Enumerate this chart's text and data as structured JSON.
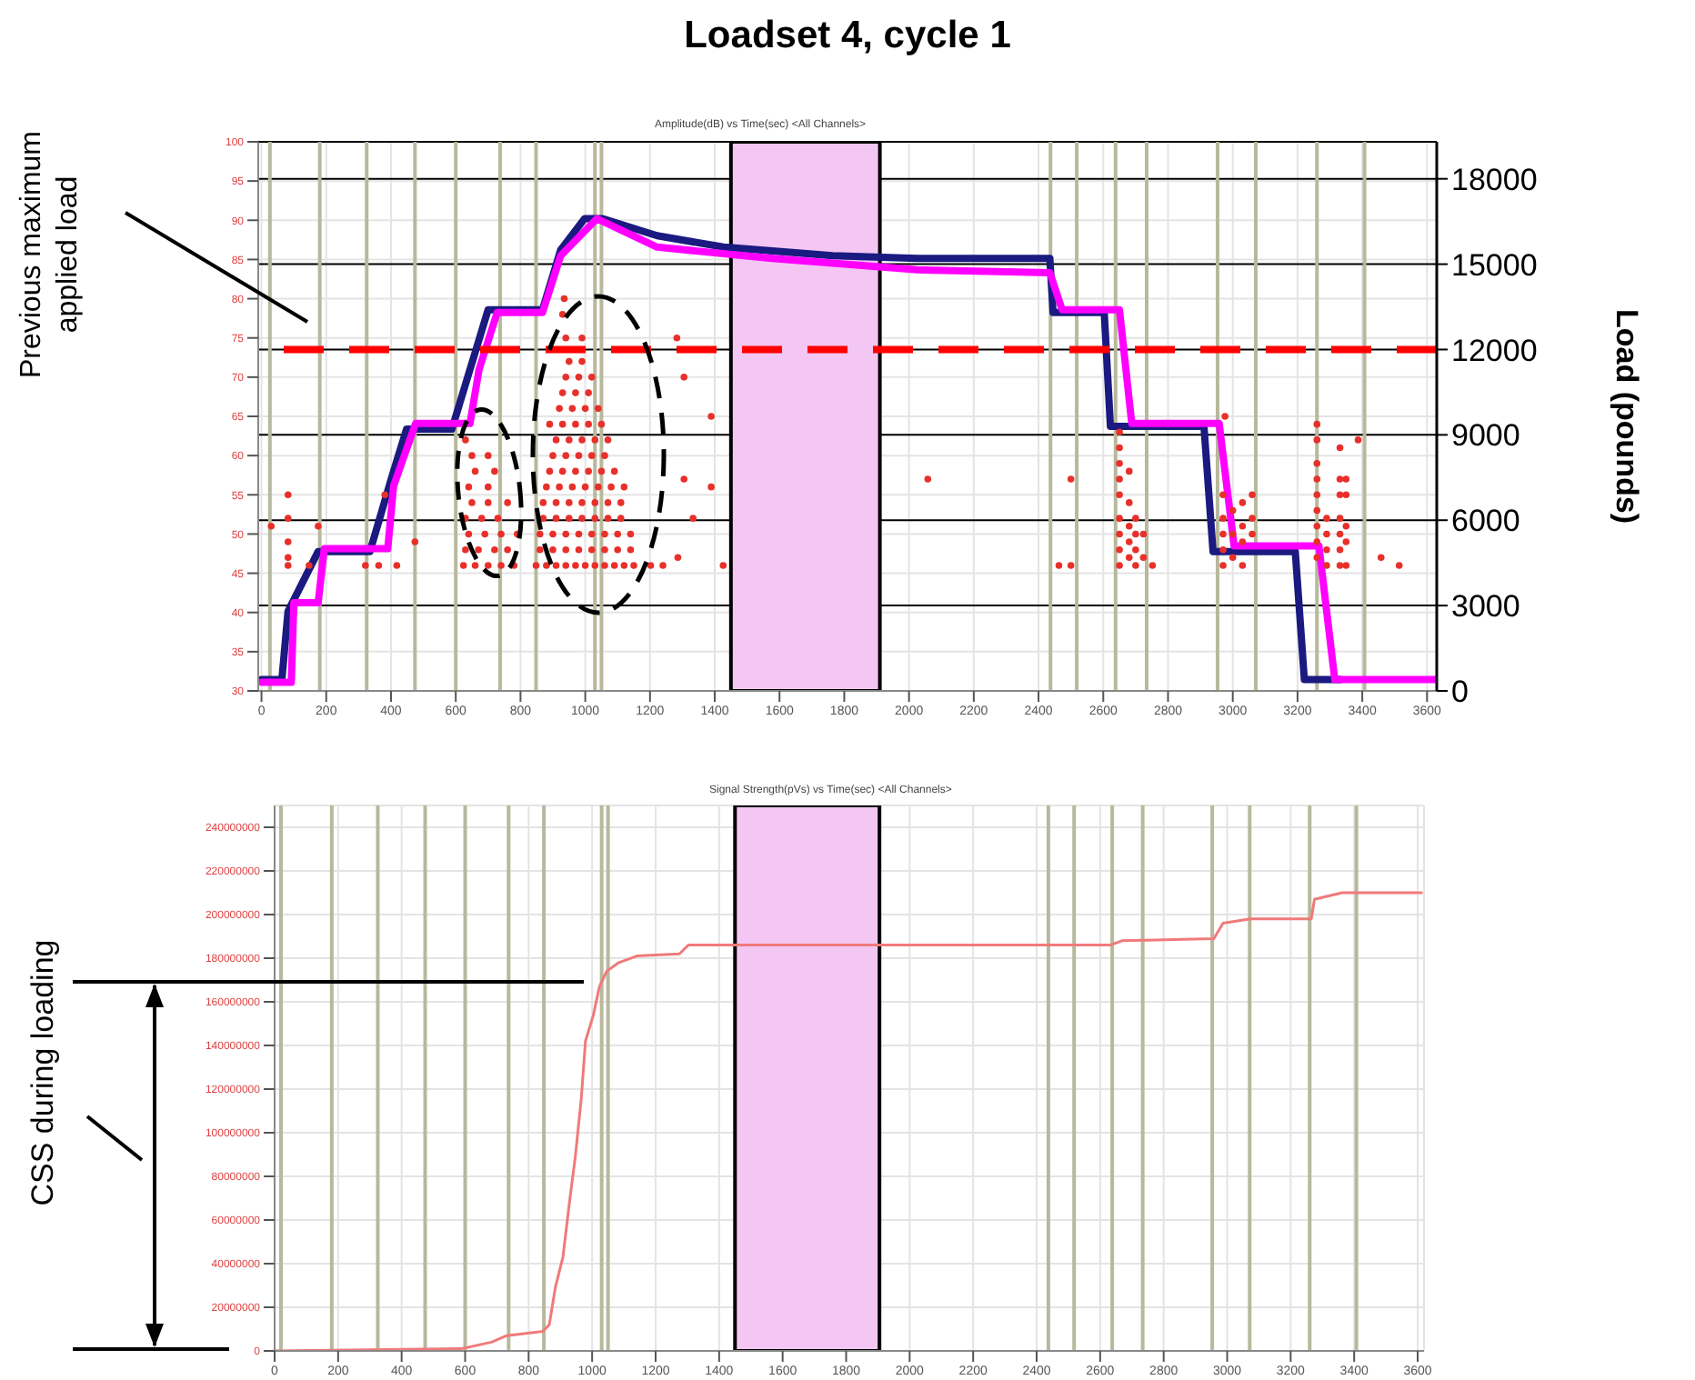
{
  "chart_data": [
    {
      "type": "scatter",
      "title": "Loadset 4, cycle 1",
      "subtitle": "Amplitude(dB) vs Time(sec) <All Channels>",
      "y2label": "Load (pounds)",
      "annotations": [
        "Previous maximum applied load"
      ],
      "xlim": [
        -10,
        3630
      ],
      "xticks": [
        0,
        200,
        400,
        600,
        800,
        1000,
        1200,
        1400,
        1600,
        1800,
        2000,
        2200,
        2400,
        2600,
        2800,
        3000,
        3200,
        3400,
        3600
      ],
      "ylim": [
        30,
        100
      ],
      "yticks": [
        30,
        35,
        40,
        45,
        50,
        55,
        60,
        65,
        70,
        75,
        80,
        85,
        90,
        95,
        100
      ],
      "y2lim": [
        0,
        19300
      ],
      "y2ticks": [
        0,
        3000,
        6000,
        9000,
        12000,
        15000,
        18000
      ],
      "grid": true,
      "series": [
        {
          "marker": "circle",
          "color": "#e8302a",
          "x": [
            30,
            82,
            82,
            82,
            82,
            82,
            147,
            175,
            321,
            362,
            381,
            418,
            474,
            624,
            660,
            700,
            740,
            780,
            630,
            670,
            720,
            760,
            640,
            690,
            740,
            790,
            630,
            680,
            730,
            650,
            700,
            760,
            640,
            700,
            660,
            720,
            650,
            700,
            630,
            848,
            880,
            910,
            940,
            970,
            1000,
            1030,
            1060,
            1090,
            1120,
            1150,
            1202,
            1240,
            860,
            900,
            940,
            980,
            1020,
            1060,
            1100,
            1140,
            860,
            900,
            940,
            980,
            1020,
            1060,
            1100,
            1140,
            870,
            910,
            950,
            990,
            1030,
            1070,
            1110,
            870,
            910,
            950,
            990,
            1030,
            1070,
            1110,
            880,
            920,
            960,
            1000,
            1040,
            1080,
            1120,
            890,
            930,
            970,
            1010,
            1050,
            1090,
            900,
            940,
            980,
            1020,
            1060,
            910,
            950,
            990,
            1030,
            1070,
            890,
            930,
            970,
            1010,
            1050,
            920,
            960,
            1000,
            1040,
            930,
            970,
            1010,
            940,
            980,
            1020,
            950,
            990,
            940,
            990,
            930,
            935,
            1283,
            1305,
            1389,
            1305,
            1389,
            1333,
            1286,
            1426,
            2058,
            2463,
            2500,
            2500,
            2650,
            2650,
            2650,
            2650,
            2650,
            2650,
            2650,
            2650,
            2650,
            2680,
            2680,
            2680,
            2680,
            2680,
            2700,
            2700,
            2700,
            2700,
            2724,
            2724,
            2752,
            2970,
            2970,
            2970,
            2970,
            2970,
            2976,
            3000,
            3000,
            3000,
            3030,
            3030,
            3030,
            3030,
            3060,
            3060,
            3060,
            3260,
            3260,
            3260,
            3260,
            3260,
            3260,
            3260,
            3260,
            3260,
            3290,
            3290,
            3290,
            3290,
            3331,
            3331,
            3331,
            3331,
            3331,
            3331,
            3331,
            3350,
            3350,
            3350,
            3350,
            3350,
            3387,
            3458,
            3514
          ],
          "values": [
            51,
            55,
            52,
            49,
            47,
            46,
            46,
            51,
            46,
            46,
            55,
            46,
            49,
            46,
            46,
            46,
            46,
            46,
            48,
            48,
            48,
            48,
            50,
            50,
            50,
            50,
            52,
            52,
            52,
            54,
            54,
            54,
            56,
            56,
            58,
            58,
            60,
            60,
            62,
            46,
            46,
            46,
            46,
            46,
            46,
            46,
            46,
            46,
            46,
            46,
            46,
            46,
            48,
            48,
            48,
            48,
            48,
            48,
            48,
            48,
            50,
            50,
            50,
            50,
            50,
            50,
            50,
            50,
            52,
            52,
            52,
            52,
            52,
            52,
            52,
            54,
            54,
            54,
            54,
            54,
            54,
            54,
            56,
            56,
            56,
            56,
            56,
            56,
            56,
            58,
            58,
            58,
            58,
            58,
            58,
            60,
            60,
            60,
            60,
            60,
            62,
            62,
            62,
            62,
            62,
            64,
            64,
            64,
            64,
            64,
            66,
            66,
            66,
            66,
            68,
            68,
            68,
            70,
            70,
            70,
            72,
            72,
            75,
            75,
            78,
            80,
            75,
            70,
            65,
            57,
            56,
            52,
            47,
            46,
            57,
            46,
            46,
            57,
            63,
            61,
            59,
            57,
            55,
            52,
            50,
            48,
            46,
            58,
            54,
            51,
            49,
            47,
            52,
            50,
            48,
            46,
            50,
            47,
            46,
            55,
            52,
            50,
            48,
            46,
            65,
            53,
            50,
            47,
            54,
            51,
            49,
            46,
            55,
            52,
            50,
            64,
            62,
            59,
            57,
            55,
            53,
            51,
            49,
            47,
            52,
            50,
            48,
            46,
            61,
            57,
            55,
            52,
            50,
            48,
            46,
            57,
            55,
            51,
            49,
            46,
            62,
            47,
            46
          ]
        },
        {
          "type": "line",
          "axis": "y2",
          "color": "#1a1a80",
          "x": [
            0,
            63,
            82,
            175,
            335,
            402,
            448,
            588,
            644,
            700,
            868,
            924,
            998,
            1054,
            1222,
            1427,
            1764,
            2025,
            2435,
            2445,
            2603,
            2622,
            2911,
            2939,
            3193,
            3221,
            3333
          ],
          "values": [
            400,
            400,
            2800,
            4900,
            4900,
            7500,
            9200,
            9200,
            11300,
            13400,
            13400,
            15500,
            16600,
            16600,
            16000,
            15600,
            15300,
            15200,
            15200,
            13300,
            13300,
            9300,
            9300,
            4900,
            4900,
            400,
            400
          ]
        },
        {
          "type": "line",
          "axis": "y2",
          "color": "#ff00ff",
          "x": [
            0,
            92,
            100,
            175,
            194,
            390,
            408,
            476,
            644,
            672,
            728,
            868,
            924,
            1036,
            1222,
            1577,
            2025,
            2435,
            2473,
            2650,
            2688,
            2958,
            3004,
            3266,
            3315,
            3630
          ],
          "values": [
            300,
            300,
            3100,
            3100,
            5000,
            5000,
            7200,
            9400,
            9400,
            11300,
            13300,
            13300,
            15300,
            16600,
            15600,
            15200,
            14800,
            14700,
            13400,
            13400,
            9400,
            9400,
            5100,
            5100,
            400,
            400
          ]
        }
      ],
      "ref_lines": [
        {
          "axis": "y2",
          "value": 12000,
          "color": "#ff0000",
          "line_style": "dashed"
        },
        {
          "axis": "x",
          "value": 26,
          "color": "#b8b89c"
        },
        {
          "axis": "x",
          "value": 180,
          "color": "#b8b89c"
        },
        {
          "axis": "x",
          "value": 325,
          "color": "#b8b89c"
        },
        {
          "axis": "x",
          "value": 474,
          "color": "#b8b89c"
        },
        {
          "axis": "x",
          "value": 600,
          "color": "#b8b89c"
        },
        {
          "axis": "x",
          "value": 737,
          "color": "#b8b89c"
        },
        {
          "axis": "x",
          "value": 848,
          "color": "#b8b89c"
        },
        {
          "axis": "x",
          "value": 1030,
          "color": "#b8b89c"
        },
        {
          "axis": "x",
          "value": 1050,
          "color": "#b8b89c"
        },
        {
          "axis": "x",
          "value": 2437,
          "color": "#b8b89c"
        },
        {
          "axis": "x",
          "value": 2518,
          "color": "#b8b89c"
        },
        {
          "axis": "x",
          "value": 2638,
          "color": "#b8b89c"
        },
        {
          "axis": "x",
          "value": 2734,
          "color": "#b8b89c"
        },
        {
          "axis": "x",
          "value": 2953,
          "color": "#b8b89c"
        },
        {
          "axis": "x",
          "value": 3071,
          "color": "#b8b89c"
        },
        {
          "axis": "x",
          "value": 3260,
          "color": "#b8b89c"
        },
        {
          "axis": "x",
          "value": 3407,
          "color": "#b8b89c"
        }
      ],
      "bands": [
        {
          "axis": "x",
          "from": 1450,
          "to": 1910,
          "color": "#f3c6f3"
        }
      ]
    },
    {
      "type": "line",
      "subtitle": "Signal Strength(pVs) vs Time(sec) <All Channels>",
      "annotations": [
        "CSS during loading"
      ],
      "xlim": [
        0,
        3620
      ],
      "xticks": [
        0,
        200,
        400,
        600,
        800,
        1000,
        1200,
        1400,
        1600,
        1800,
        2000,
        2200,
        2400,
        2600,
        2800,
        3000,
        3200,
        3400,
        3600
      ],
      "ylim": [
        0,
        250000000
      ],
      "yticks": [
        0,
        20000000,
        40000000,
        60000000,
        80000000,
        100000000,
        120000000,
        140000000,
        160000000,
        180000000,
        200000000,
        220000000,
        240000000
      ],
      "grid": true,
      "series": [
        {
          "color": "#f07a7a",
          "x": [
            0,
            588,
            683,
            731,
            845,
            865,
            884,
            908,
            931,
            947,
            966,
            979,
            1004,
            1023,
            1046,
            1084,
            1141,
            1275,
            1303,
            1427,
            1900,
            2631,
            2669,
            2958,
            2987,
            3073,
            3265,
            3275,
            3362,
            3612
          ],
          "values": [
            0,
            1000000,
            4000000,
            7000000,
            9000000,
            12000000,
            29000000,
            43000000,
            71000000,
            89000000,
            116000000,
            142000000,
            154000000,
            167000000,
            174000000,
            178000000,
            181000000,
            182000000,
            186000000,
            186000000,
            186000000,
            186000000,
            188000000,
            189000000,
            196000000,
            198000000,
            198000000,
            207000000,
            210000000,
            210000000
          ]
        }
      ],
      "ref_lines": [
        {
          "axis": "x",
          "value": 20,
          "color": "#b8b89c"
        },
        {
          "axis": "x",
          "value": 180,
          "color": "#b8b89c"
        },
        {
          "axis": "x",
          "value": 325,
          "color": "#b8b89c"
        },
        {
          "axis": "x",
          "value": 474,
          "color": "#b8b89c"
        },
        {
          "axis": "x",
          "value": 600,
          "color": "#b8b89c"
        },
        {
          "axis": "x",
          "value": 737,
          "color": "#b8b89c"
        },
        {
          "axis": "x",
          "value": 848,
          "color": "#b8b89c"
        },
        {
          "axis": "x",
          "value": 1030,
          "color": "#b8b89c"
        },
        {
          "axis": "x",
          "value": 1050,
          "color": "#b8b89c"
        },
        {
          "axis": "x",
          "value": 2437,
          "color": "#b8b89c"
        },
        {
          "axis": "x",
          "value": 2518,
          "color": "#b8b89c"
        },
        {
          "axis": "x",
          "value": 2638,
          "color": "#b8b89c"
        },
        {
          "axis": "x",
          "value": 2734,
          "color": "#b8b89c"
        },
        {
          "axis": "x",
          "value": 2953,
          "color": "#b8b89c"
        },
        {
          "axis": "x",
          "value": 3071,
          "color": "#b8b89c"
        },
        {
          "axis": "x",
          "value": 3260,
          "color": "#b8b89c"
        },
        {
          "axis": "x",
          "value": 3407,
          "color": "#b8b89c"
        }
      ],
      "bands": [
        {
          "axis": "x",
          "from": 1450,
          "to": 1905,
          "color": "#f3c6f3"
        }
      ]
    }
  ]
}
